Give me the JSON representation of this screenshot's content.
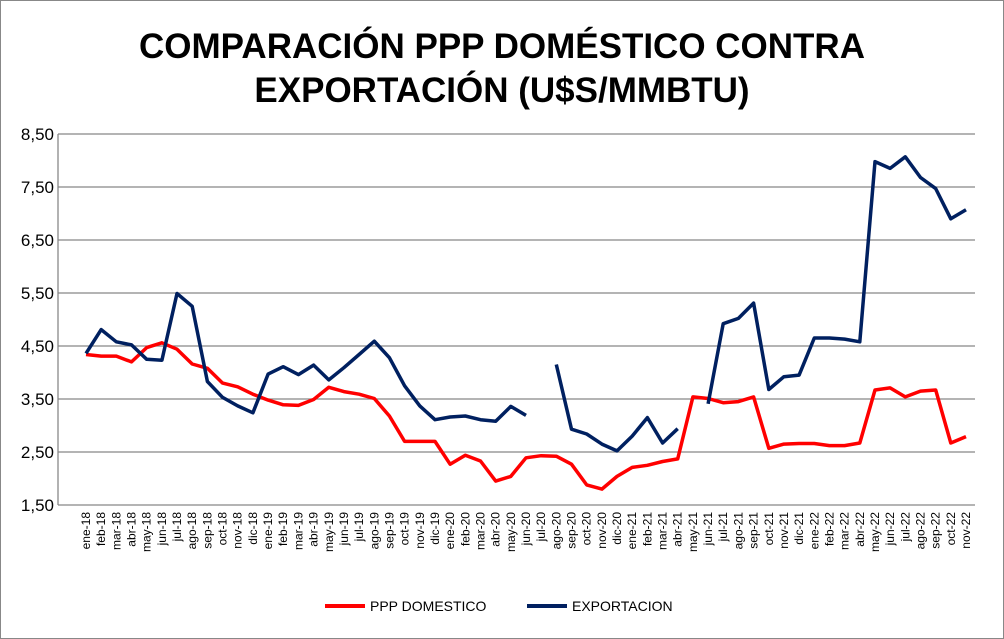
{
  "chart_data": {
    "type": "line",
    "title_lines": [
      "COMPARACIÓN PPP DOMÉSTICO CONTRA",
      "EXPORTACIÓN (U$S/MMBTU)"
    ],
    "xlabel": "",
    "ylabel": "",
    "ylim": [
      1.5,
      8.5
    ],
    "yticks": [
      "1,50",
      "2,50",
      "3,50",
      "4,50",
      "5,50",
      "6,50",
      "7,50",
      "8,50"
    ],
    "grid": true,
    "legend_position": "bottom",
    "categories": [
      "ene-18",
      "feb-18",
      "mar-18",
      "abr-18",
      "may-18",
      "jun-18",
      "jul-18",
      "ago-18",
      "sep-18",
      "oct-18",
      "nov-18",
      "dic-18",
      "ene-19",
      "feb-19",
      "mar-19",
      "abr-19",
      "may-19",
      "jun-19",
      "jul-19",
      "ago-19",
      "sep-19",
      "oct-19",
      "nov-19",
      "dic-19",
      "ene-20",
      "feb-20",
      "mar-20",
      "abr-20",
      "may-20",
      "jun-20",
      "jul-20",
      "ago-20",
      "sep-20",
      "oct-20",
      "nov-20",
      "dic-20",
      "ene-21",
      "feb-21",
      "mar-21",
      "abr-21",
      "may-21",
      "jun-21",
      "jul-21",
      "ago-21",
      "sep-21",
      "oct-21",
      "nov-21",
      "dic-21",
      "ene-22",
      "feb-22",
      "mar-22",
      "abr-22",
      "may-22",
      "jun-22",
      "jul-22",
      "ago-22",
      "sep-22",
      "oct-22",
      "nov-22"
    ],
    "series": [
      {
        "name": "PPP DOMESTICO",
        "color": "#ff0000",
        "values": [
          4.34,
          4.31,
          4.31,
          4.2,
          4.47,
          4.56,
          4.44,
          4.16,
          4.08,
          3.8,
          3.73,
          3.59,
          3.48,
          3.39,
          3.38,
          3.49,
          3.72,
          3.64,
          3.59,
          3.51,
          3.18,
          2.7,
          2.7,
          2.7,
          2.27,
          2.44,
          2.33,
          1.95,
          2.04,
          2.39,
          2.43,
          2.42,
          2.27,
          1.88,
          1.8,
          2.04,
          2.21,
          2.25,
          2.32,
          2.37,
          3.54,
          3.51,
          3.43,
          3.45,
          3.54,
          2.57,
          2.65,
          2.66,
          2.66,
          2.62,
          2.62,
          2.67,
          3.67,
          3.71,
          3.54,
          3.65,
          3.67,
          2.67,
          2.79
        ]
      },
      {
        "name": "EXPORTACION",
        "color": "#002060",
        "values": [
          4.36,
          4.81,
          4.58,
          4.52,
          4.25,
          4.23,
          5.49,
          5.25,
          3.83,
          3.53,
          3.37,
          3.24,
          3.97,
          4.11,
          3.96,
          4.14,
          3.86,
          4.09,
          4.34,
          4.59,
          4.28,
          3.75,
          3.37,
          3.11,
          3.16,
          3.18,
          3.11,
          3.08,
          3.36,
          3.19,
          null,
          4.15,
          2.93,
          2.84,
          2.65,
          2.52,
          2.8,
          3.15,
          2.67,
          2.94,
          null,
          3.41,
          4.92,
          5.02,
          5.31,
          3.68,
          3.92,
          3.95,
          4.65,
          4.65,
          4.63,
          4.58,
          7.98,
          7.85,
          8.07,
          7.68,
          7.47,
          6.9,
          7.07
        ]
      }
    ]
  }
}
